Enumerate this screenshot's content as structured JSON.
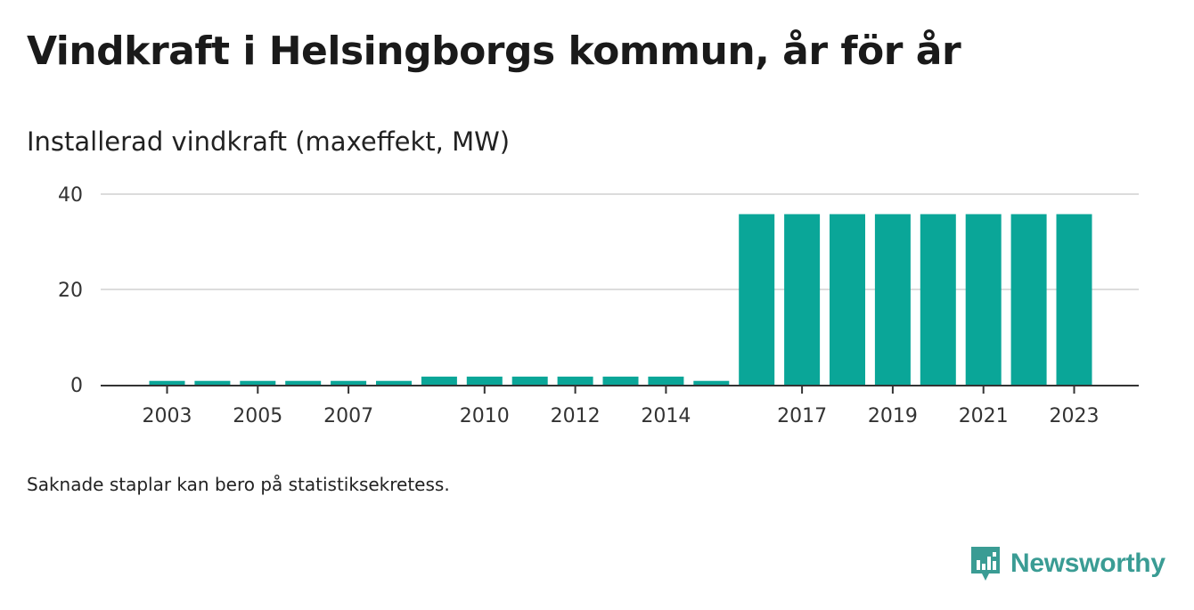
{
  "title": "Vindkraft i Helsingborgs kommun, år för år",
  "subtitle": "Installerad vindkraft (maxeffekt, MW)",
  "footnote": "Saknade staplar kan bero på statistiksekretess.",
  "brand": {
    "name": "Newsworthy",
    "icon": "newsworthy-logo-icon"
  },
  "colors": {
    "bar": "#0aa698",
    "grid": "#dcdcdc",
    "axis": "#333333",
    "brand": "#3a9c94"
  },
  "chart_data": {
    "type": "bar",
    "categories": [
      "2003",
      "2004",
      "2005",
      "2006",
      "2007",
      "2008",
      "2009",
      "2010",
      "2011",
      "2012",
      "2013",
      "2014",
      "2015",
      "2016",
      "2017",
      "2018",
      "2019",
      "2020",
      "2021",
      "2022",
      "2023"
    ],
    "values": [
      0.8,
      0.8,
      0.8,
      0.8,
      0.8,
      0.8,
      1.7,
      1.7,
      1.7,
      1.7,
      1.7,
      1.7,
      0.8,
      35.8,
      35.8,
      35.8,
      35.8,
      35.8,
      35.8,
      35.8,
      35.8
    ],
    "x_tick_labels": [
      "2003",
      "2005",
      "2007",
      "2010",
      "2012",
      "2014",
      "2017",
      "2019",
      "2021",
      "2023"
    ],
    "y_ticks": [
      0,
      20,
      40
    ],
    "ylim": [
      0,
      40
    ],
    "xlabel": "",
    "ylabel": "",
    "grid": true,
    "legend": "none"
  }
}
